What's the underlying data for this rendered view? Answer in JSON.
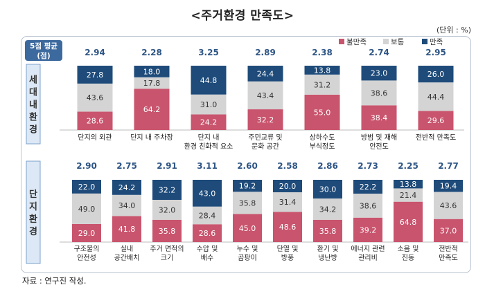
{
  "title": "<주거환경 만족도>",
  "unit": "(단위 : %)",
  "source": "자료 : 연구진 작성.",
  "avg_label": [
    "5점 평균",
    "(점)"
  ],
  "legend": [
    {
      "label": "불만족",
      "color": "#c9546d"
    },
    {
      "label": "보통",
      "color": "#d4d4d4"
    },
    {
      "label": "만족",
      "color": "#1e4b7a"
    }
  ],
  "colors": {
    "dissatisfied": "#c9546d",
    "neutral": "#d4d4d4",
    "satisfied": "#1e4b7a",
    "avg_text": "#2e5585",
    "group_label_bg": "#dce8f5",
    "group_label_border": "#7da2cc"
  },
  "chart_data": [
    {
      "type": "bar",
      "stacked": true,
      "group_label": "세대 내 환경",
      "categories": [
        [
          "단지의 외관"
        ],
        [
          "단지 내 주차장"
        ],
        [
          "단지 내",
          "환경 친화적 요소"
        ],
        [
          "주민교류 및",
          "문화 공간"
        ],
        [
          "상하수도",
          "부식정도"
        ],
        [
          "방범 및 재해",
          "안전도"
        ],
        [
          "전반적 만족도"
        ]
      ],
      "averages": [
        "2.94",
        "2.28",
        "3.25",
        "2.89",
        "2.38",
        "2.74",
        "2.95"
      ],
      "series": [
        {
          "name": "불만족",
          "values": [
            28.6,
            64.2,
            24.2,
            32.2,
            55.0,
            38.4,
            29.6
          ]
        },
        {
          "name": "보통",
          "values": [
            43.6,
            17.8,
            31.0,
            43.4,
            31.2,
            38.6,
            44.4
          ]
        },
        {
          "name": "만족",
          "values": [
            27.8,
            18.0,
            44.8,
            24.4,
            13.8,
            23.0,
            26.0
          ]
        }
      ],
      "ylim": [
        0,
        100
      ]
    },
    {
      "type": "bar",
      "stacked": true,
      "group_label": "단지 환경",
      "categories": [
        [
          "구조물의",
          "안전성"
        ],
        [
          "실내",
          "공간배치"
        ],
        [
          "주거 면적의",
          "크기"
        ],
        [
          "수압 및",
          "배수"
        ],
        [
          "누수 및",
          "곰팡이"
        ],
        [
          "단열 및",
          "방풍"
        ],
        [
          "환기 및",
          "냉난방"
        ],
        [
          "에너지 관련",
          "관리비"
        ],
        [
          "소음 및",
          "진동"
        ],
        [
          "전반적",
          "만족도"
        ]
      ],
      "averages": [
        "2.90",
        "2.75",
        "2.91",
        "3.11",
        "2.60",
        "2.58",
        "2.86",
        "2.73",
        "2.25",
        "2.77"
      ],
      "series": [
        {
          "name": "불만족",
          "values": [
            29.0,
            41.8,
            35.8,
            28.6,
            45.0,
            48.6,
            35.8,
            39.2,
            64.8,
            37.0
          ]
        },
        {
          "name": "보통",
          "values": [
            49.0,
            34.0,
            32.0,
            28.4,
            35.8,
            31.4,
            34.2,
            38.6,
            21.4,
            43.6
          ]
        },
        {
          "name": "만족",
          "values": [
            22.0,
            24.2,
            32.2,
            43.0,
            19.2,
            20.0,
            30.0,
            22.2,
            13.8,
            19.4
          ]
        }
      ],
      "ylim": [
        0,
        100
      ]
    }
  ]
}
